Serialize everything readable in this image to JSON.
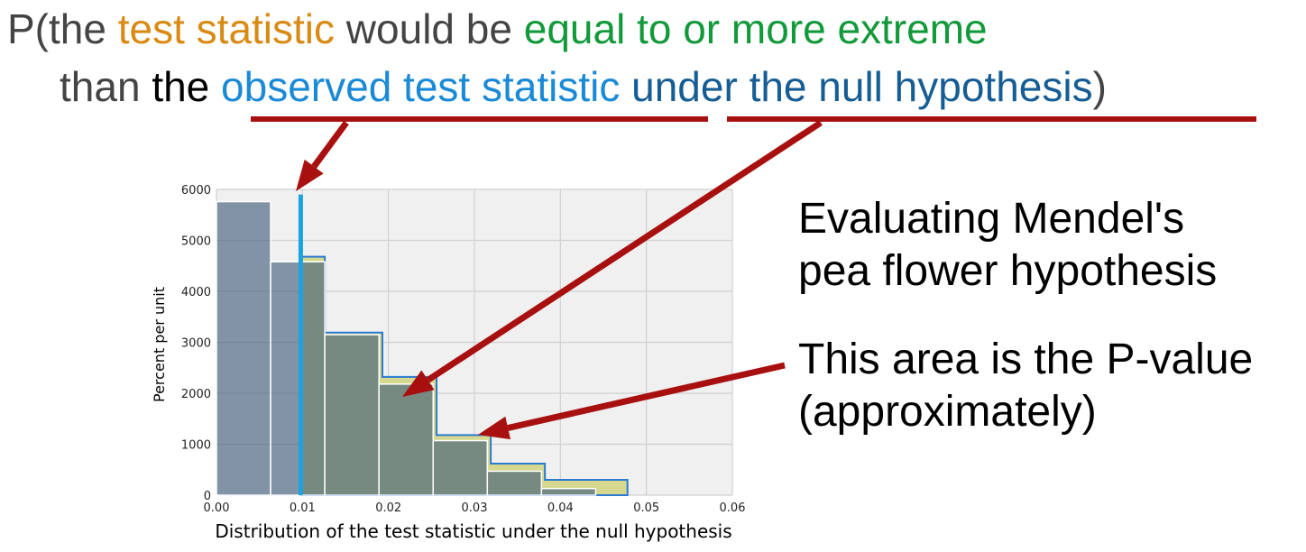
{
  "headline": {
    "line1": [
      {
        "text": "P(the ",
        "style": "grey"
      },
      {
        "text": "test statistic",
        "style": "orange"
      },
      {
        "text": " would be ",
        "style": "grey"
      },
      {
        "text": "equal to or more extreme",
        "style": "green"
      }
    ],
    "line2": [
      {
        "text": "than ",
        "style": "grey"
      },
      {
        "text": "the ",
        "style": "black"
      },
      {
        "text": "observed test statistic",
        "style": "light"
      },
      {
        "text": " ",
        "style": "grey"
      },
      {
        "text": "under the null hypothesis",
        "style": "dark"
      },
      {
        "text": ")",
        "style": "grey"
      }
    ]
  },
  "notes": {
    "title_line1": "Evaluating Mendel's",
    "title_line2": "pea flower hypothesis",
    "pvalue_line1": "This area is the P-value",
    "pvalue_line2": "(approximately)"
  },
  "colors": {
    "bar_fill": "#3d5a78",
    "shade_fill": "#d6d890",
    "observed_line": "#1aa3e0",
    "arrow": "#a81010",
    "plot_bg": "#f0f0f0",
    "grid": "#d0d0d0"
  },
  "chart_data": {
    "type": "bar",
    "xlabel": "Distribution of the test statistic under the null hypothesis",
    "ylabel": "Percent per unit",
    "xlim": [
      0,
      0.06
    ],
    "ylim": [
      0,
      6000
    ],
    "xticks": [
      "0.00",
      "0.01",
      "0.02",
      "0.03",
      "0.04",
      "0.05",
      "0.06"
    ],
    "yticks": [
      "0",
      "1000",
      "2000",
      "3000",
      "4000",
      "5000",
      "6000"
    ],
    "observed_statistic": 0.0098,
    "histogram": {
      "bins": [
        0.0,
        0.0063,
        0.0126,
        0.0189,
        0.0252,
        0.0315,
        0.0378,
        0.0441
      ],
      "values": [
        5760,
        4580,
        3150,
        2180,
        1070,
        470,
        130
      ]
    },
    "shaded_region": {
      "label": "P-value area",
      "edges": [
        0.0098,
        0.0126,
        0.0193,
        0.0256,
        0.0319,
        0.0382,
        0.0478
      ],
      "heights": [
        4680,
        3190,
        2320,
        1180,
        620,
        300
      ]
    }
  }
}
